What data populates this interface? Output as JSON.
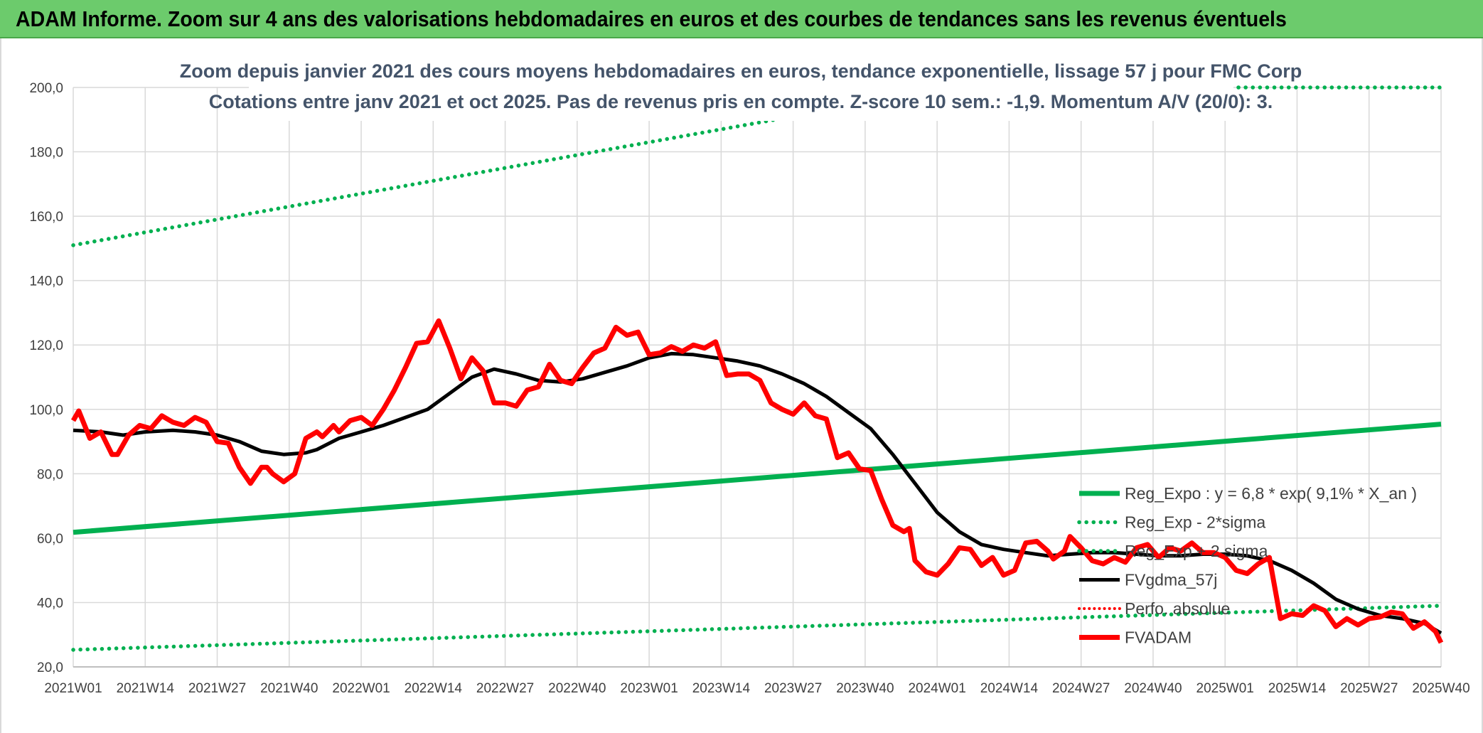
{
  "header": {
    "title": "ADAM Informe. Zoom sur 4 ans des valorisations hebdomadaires en euros et des courbes de tendances sans les revenus éventuels"
  },
  "colors": {
    "banner": "#6ccb6c",
    "green": "#00b050",
    "red": "#ff0000",
    "black": "#000000",
    "grid": "#d9d9d9"
  },
  "chart_data": {
    "type": "line",
    "title": "Zoom depuis janvier 2021 des cours moyens hebdomadaires en euros, tendance exponentielle, lissage 57 j pour FMC Corp",
    "subtitle": "Cotations entre janv 2021 et oct 2025. Pas de revenus pris en compte. Z-score 10 sem.: -1,9. Momentum A/V (20/0): 3.",
    "xlabel": "",
    "ylabel": "",
    "ylim": [
      20,
      200
    ],
    "yticks": [
      "200,0",
      "180,0",
      "160,0",
      "140,0",
      "120,0",
      "100,0",
      "80,0",
      "60,0",
      "40,0",
      "20,0"
    ],
    "xticks": [
      "2021W01",
      "2021W14",
      "2021W27",
      "2021W40",
      "2022W01",
      "2022W14",
      "2022W27",
      "2022W40",
      "2023W01",
      "2023W14",
      "2023W27",
      "2023W40",
      "2024W01",
      "2024W14",
      "2024W27",
      "2024W40",
      "2025W01",
      "2025W14",
      "2025W27",
      "2025W40"
    ],
    "legend_position": "right",
    "series": [
      {
        "name": "Reg_Expo : y = 6,8 * exp( 9,1% *  X_an )",
        "style": "solid-green-thick",
        "values": [
          [
            0,
            61.8
          ],
          [
            247,
            95.4
          ]
        ]
      },
      {
        "name": "Reg_Exp - 2*sigma",
        "style": "dotted-green",
        "values": [
          [
            0,
            25.3
          ],
          [
            247,
            39.0
          ]
        ]
      },
      {
        "name": "Reg_Exp + 2 sigma",
        "style": "dotted-green",
        "values": [
          [
            0,
            151.0
          ],
          [
            130,
            191.0
          ],
          [
            210,
            200.0
          ],
          [
            247,
            200.0
          ]
        ]
      },
      {
        "name": "FVgdma_57j",
        "style": "solid-black",
        "values": [
          [
            0,
            93.5
          ],
          [
            5,
            93
          ],
          [
            9,
            92
          ],
          [
            13,
            93
          ],
          [
            18,
            93.5
          ],
          [
            22,
            93
          ],
          [
            26,
            92
          ],
          [
            30,
            90
          ],
          [
            34,
            87
          ],
          [
            38,
            86
          ],
          [
            42,
            86.5
          ],
          [
            44,
            87.5
          ],
          [
            48,
            91
          ],
          [
            52,
            93
          ],
          [
            56,
            95
          ],
          [
            60,
            97.5
          ],
          [
            64,
            100
          ],
          [
            68,
            105
          ],
          [
            72,
            110
          ],
          [
            76,
            112.5
          ],
          [
            80,
            111
          ],
          [
            84,
            109
          ],
          [
            88,
            108.5
          ],
          [
            92,
            109.5
          ],
          [
            96,
            111.5
          ],
          [
            100,
            113.5
          ],
          [
            104,
            116
          ],
          [
            108,
            117.3
          ],
          [
            112,
            117
          ],
          [
            116,
            116
          ],
          [
            120,
            115
          ],
          [
            124,
            113.5
          ],
          [
            128,
            111
          ],
          [
            132,
            108
          ],
          [
            136,
            104
          ],
          [
            140,
            99
          ],
          [
            144,
            94
          ],
          [
            148,
            86
          ],
          [
            152,
            77
          ],
          [
            156,
            68
          ],
          [
            160,
            62
          ],
          [
            164,
            58
          ],
          [
            168,
            56.5
          ],
          [
            172,
            55.5
          ],
          [
            176,
            54.5
          ],
          [
            180,
            55
          ],
          [
            184,
            55.5
          ],
          [
            188,
            55.5
          ],
          [
            192,
            55
          ],
          [
            196,
            54.5
          ],
          [
            200,
            54.5
          ],
          [
            204,
            55
          ],
          [
            208,
            55
          ],
          [
            212,
            54.5
          ],
          [
            216,
            53
          ],
          [
            220,
            50
          ],
          [
            224,
            46
          ],
          [
            228,
            41
          ],
          [
            232,
            38
          ],
          [
            236,
            36
          ],
          [
            240,
            35
          ],
          [
            244,
            33.5
          ],
          [
            247,
            30.5
          ]
        ]
      },
      {
        "name": "Perfo. absolue",
        "style": "dotted-red",
        "values": []
      },
      {
        "name": "FVADAM",
        "style": "solid-red-thick",
        "values": [
          [
            0,
            96.5
          ],
          [
            1,
            99.5
          ],
          [
            3,
            91
          ],
          [
            5,
            93
          ],
          [
            7,
            86
          ],
          [
            8,
            86
          ],
          [
            10,
            92
          ],
          [
            12,
            95
          ],
          [
            14,
            94
          ],
          [
            16,
            98
          ],
          [
            18,
            96
          ],
          [
            20,
            95
          ],
          [
            22,
            97.5
          ],
          [
            24,
            96
          ],
          [
            26,
            90
          ],
          [
            28,
            89.5
          ],
          [
            30,
            82
          ],
          [
            32,
            77
          ],
          [
            34,
            82
          ],
          [
            35,
            82
          ],
          [
            36,
            80
          ],
          [
            38,
            77.5
          ],
          [
            40,
            80
          ],
          [
            42,
            91
          ],
          [
            44,
            93
          ],
          [
            45,
            91.5
          ],
          [
            47,
            95
          ],
          [
            48,
            93
          ],
          [
            50,
            96.5
          ],
          [
            52,
            97.5
          ],
          [
            54,
            95
          ],
          [
            56,
            100
          ],
          [
            58,
            106
          ],
          [
            60,
            113
          ],
          [
            62,
            120.5
          ],
          [
            64,
            121
          ],
          [
            66,
            127.5
          ],
          [
            68,
            119
          ],
          [
            70,
            109.5
          ],
          [
            72,
            116
          ],
          [
            74,
            112
          ],
          [
            76,
            102
          ],
          [
            78,
            102
          ],
          [
            80,
            101
          ],
          [
            82,
            106
          ],
          [
            84,
            107
          ],
          [
            86,
            114
          ],
          [
            88,
            109
          ],
          [
            90,
            108
          ],
          [
            92,
            113
          ],
          [
            94,
            117.5
          ],
          [
            96,
            119
          ],
          [
            98,
            125.5
          ],
          [
            100,
            123
          ],
          [
            102,
            124
          ],
          [
            104,
            117
          ],
          [
            106,
            117.5
          ],
          [
            108,
            119.5
          ],
          [
            110,
            118
          ],
          [
            112,
            120
          ],
          [
            114,
            119
          ],
          [
            116,
            121
          ],
          [
            118,
            110.5
          ],
          [
            120,
            111
          ],
          [
            122,
            111
          ],
          [
            124,
            109
          ],
          [
            126,
            102
          ],
          [
            128,
            100
          ],
          [
            130,
            98.5
          ],
          [
            132,
            102
          ],
          [
            134,
            98
          ],
          [
            136,
            97
          ],
          [
            138,
            85
          ],
          [
            140,
            86.5
          ],
          [
            142,
            81.5
          ],
          [
            144,
            81
          ],
          [
            146,
            72
          ],
          [
            148,
            64
          ],
          [
            150,
            62
          ],
          [
            151,
            63
          ],
          [
            152,
            53
          ],
          [
            154,
            49.5
          ],
          [
            156,
            48.5
          ],
          [
            158,
            52
          ],
          [
            160,
            57
          ],
          [
            162,
            56.5
          ],
          [
            164,
            51.5
          ],
          [
            166,
            54
          ],
          [
            168,
            48.5
          ],
          [
            170,
            50
          ],
          [
            172,
            58.5
          ],
          [
            174,
            59
          ],
          [
            176,
            56
          ],
          [
            177,
            53.5
          ],
          [
            179,
            56
          ],
          [
            180,
            60.5
          ],
          [
            182,
            57
          ],
          [
            184,
            53
          ],
          [
            186,
            52
          ],
          [
            188,
            54
          ],
          [
            190,
            52.5
          ],
          [
            192,
            57
          ],
          [
            194,
            58
          ],
          [
            196,
            54
          ],
          [
            198,
            57
          ],
          [
            200,
            56
          ],
          [
            202,
            58.5
          ],
          [
            204,
            55.5
          ],
          [
            206,
            55.5
          ],
          [
            208,
            54
          ],
          [
            210,
            50
          ],
          [
            212,
            49
          ],
          [
            214,
            52
          ],
          [
            216,
            54
          ],
          [
            218,
            35
          ],
          [
            220,
            36.5
          ],
          [
            222,
            36
          ],
          [
            224,
            39
          ],
          [
            226,
            37.5
          ],
          [
            228,
            32.5
          ],
          [
            230,
            35
          ],
          [
            232,
            33
          ],
          [
            234,
            35
          ],
          [
            236,
            35.5
          ],
          [
            238,
            37
          ],
          [
            240,
            36.5
          ],
          [
            242,
            32
          ],
          [
            244,
            34
          ],
          [
            246,
            31
          ],
          [
            247,
            27.5
          ]
        ]
      }
    ]
  }
}
